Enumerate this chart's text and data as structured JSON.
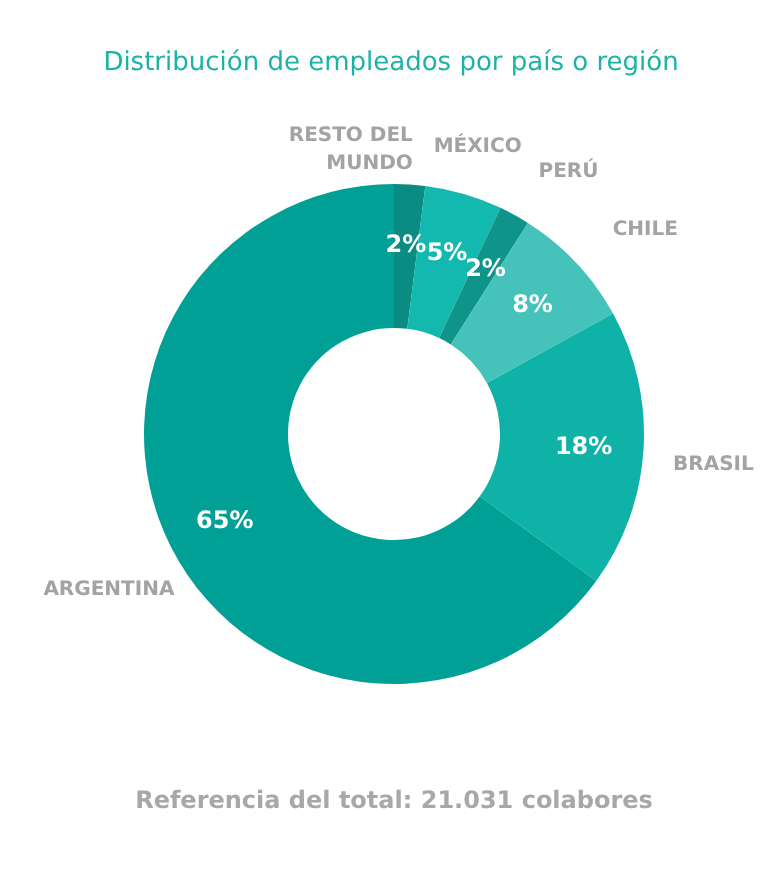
{
  "chart_data": {
    "type": "donut",
    "title": "Distribución de empleados por país o región",
    "categories": [
      "RESTO DEL MUNDO",
      "MÉXICO",
      "PERÚ",
      "CHILE",
      "BRASIL",
      "ARGENTINA"
    ],
    "values": [
      2,
      5,
      2,
      8,
      18,
      65
    ],
    "value_labels": [
      "2%",
      "5%",
      "2%",
      "8%",
      "18%",
      "65%"
    ],
    "colors": [
      "#0b8c82",
      "#13b8ae",
      "#0e9489",
      "#45c3ba",
      "#0fb2a7",
      "#00a096"
    ],
    "legend": false,
    "annotations": [
      "Referencia del total: 21.031 colabores"
    ]
  }
}
